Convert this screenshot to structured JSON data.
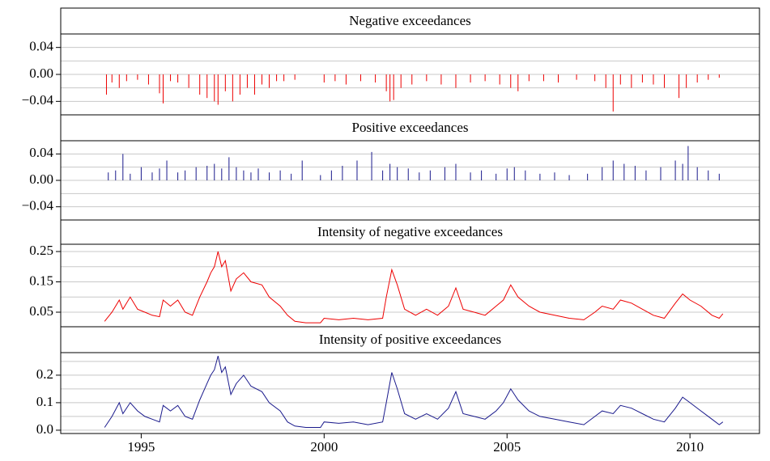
{
  "chart_data": [
    {
      "type": "spike",
      "title": "Negative exceedances",
      "color": "#ee0000",
      "x": [
        1994.05,
        1994.2,
        1994.4,
        1994.6,
        1994.9,
        1995.2,
        1995.5,
        1995.6,
        1995.8,
        1996.0,
        1996.3,
        1996.6,
        1996.8,
        1997.0,
        1997.1,
        1997.3,
        1997.5,
        1997.7,
        1997.9,
        1998.1,
        1998.3,
        1998.5,
        1998.7,
        1998.9,
        1999.2,
        2000.0,
        2000.3,
        2000.6,
        2001.0,
        2001.4,
        2001.7,
        2001.8,
        2001.9,
        2002.1,
        2002.4,
        2002.8,
        2003.2,
        2003.6,
        2004.0,
        2004.4,
        2004.8,
        2005.1,
        2005.3,
        2005.6,
        2006.0,
        2006.4,
        2006.9,
        2007.4,
        2007.7,
        2007.9,
        2008.1,
        2008.4,
        2008.7,
        2009.0,
        2009.3,
        2009.7,
        2009.9,
        2010.2,
        2010.5,
        2010.8
      ],
      "values": [
        -0.03,
        -0.012,
        -0.02,
        -0.01,
        -0.008,
        -0.015,
        -0.028,
        -0.043,
        -0.01,
        -0.012,
        -0.02,
        -0.03,
        -0.035,
        -0.04,
        -0.045,
        -0.025,
        -0.04,
        -0.03,
        -0.02,
        -0.03,
        -0.015,
        -0.02,
        -0.01,
        -0.01,
        -0.008,
        -0.012,
        -0.01,
        -0.015,
        -0.01,
        -0.012,
        -0.025,
        -0.04,
        -0.038,
        -0.02,
        -0.015,
        -0.01,
        -0.015,
        -0.02,
        -0.012,
        -0.01,
        -0.015,
        -0.02,
        -0.025,
        -0.01,
        -0.01,
        -0.012,
        -0.008,
        -0.01,
        -0.02,
        -0.055,
        -0.015,
        -0.02,
        -0.012,
        -0.015,
        -0.02,
        -0.035,
        -0.02,
        -0.012,
        -0.008,
        -0.005
      ],
      "xlim": [
        1992.8,
        2011.9
      ],
      "ylim": [
        -0.06,
        0.06
      ],
      "yticks": [
        0.04,
        {
          "value": 0,
          "label": "0.00"
        },
        {
          "value": -0.04,
          "label": "−0.04"
        }
      ],
      "minor_grid": [
        -0.06,
        -0.02,
        0.02,
        0.06
      ]
    },
    {
      "type": "spike",
      "title": "Positive exceedances",
      "color": "#1a1a8c",
      "x": [
        1994.1,
        1994.3,
        1994.5,
        1994.7,
        1995.0,
        1995.3,
        1995.5,
        1995.7,
        1996.0,
        1996.2,
        1996.5,
        1996.8,
        1997.0,
        1997.2,
        1997.4,
        1997.6,
        1997.8,
        1998.0,
        1998.2,
        1998.5,
        1998.8,
        1999.1,
        1999.4,
        1999.9,
        2000.2,
        2000.5,
        2000.9,
        2001.3,
        2001.6,
        2001.8,
        2002.0,
        2002.3,
        2002.6,
        2002.9,
        2003.3,
        2003.6,
        2004.0,
        2004.3,
        2004.7,
        2005.0,
        2005.2,
        2005.5,
        2005.9,
        2006.3,
        2006.7,
        2007.2,
        2007.6,
        2007.9,
        2008.2,
        2008.5,
        2008.8,
        2009.2,
        2009.6,
        2009.8,
        2009.95,
        2010.2,
        2010.5,
        2010.8
      ],
      "values": [
        0.012,
        0.015,
        0.04,
        0.01,
        0.02,
        0.012,
        0.018,
        0.03,
        0.012,
        0.015,
        0.02,
        0.022,
        0.025,
        0.018,
        0.035,
        0.02,
        0.015,
        0.012,
        0.018,
        0.012,
        0.015,
        0.01,
        0.03,
        0.008,
        0.015,
        0.022,
        0.03,
        0.043,
        0.015,
        0.025,
        0.02,
        0.018,
        0.012,
        0.015,
        0.02,
        0.025,
        0.012,
        0.015,
        0.01,
        0.018,
        0.02,
        0.015,
        0.01,
        0.012,
        0.008,
        0.01,
        0.02,
        0.03,
        0.025,
        0.022,
        0.015,
        0.02,
        0.03,
        0.025,
        0.052,
        0.02,
        0.015,
        0.01
      ],
      "xlim": [
        1992.8,
        2011.9
      ],
      "ylim": [
        -0.06,
        0.06
      ],
      "yticks": [
        0.04,
        {
          "value": 0,
          "label": "0.00"
        },
        {
          "value": -0.04,
          "label": "−0.04"
        }
      ],
      "minor_grid": [
        -0.06,
        -0.02,
        0.02,
        0.06
      ]
    },
    {
      "type": "line",
      "title": "Intensity of negative exceedances",
      "color": "#ee0000",
      "x": [
        1994.0,
        1994.2,
        1994.4,
        1994.5,
        1994.7,
        1994.9,
        1995.1,
        1995.3,
        1995.5,
        1995.6,
        1995.8,
        1996.0,
        1996.2,
        1996.4,
        1996.6,
        1996.8,
        1996.9,
        1997.0,
        1997.1,
        1997.2,
        1997.3,
        1997.45,
        1997.6,
        1997.8,
        1998.0,
        1998.3,
        1998.5,
        1998.8,
        1999.0,
        1999.2,
        1999.5,
        1999.9,
        2000.0,
        2000.4,
        2000.8,
        2001.2,
        2001.6,
        2001.7,
        2001.85,
        2002.0,
        2002.2,
        2002.5,
        2002.8,
        2003.1,
        2003.4,
        2003.6,
        2003.8,
        2004.1,
        2004.4,
        2004.7,
        2004.9,
        2005.1,
        2005.3,
        2005.6,
        2005.9,
        2006.3,
        2006.7,
        2007.1,
        2007.4,
        2007.6,
        2007.9,
        2008.1,
        2008.4,
        2008.7,
        2009.0,
        2009.3,
        2009.6,
        2009.8,
        2010.0,
        2010.3,
        2010.6,
        2010.8,
        2010.9
      ],
      "values": [
        0.02,
        0.05,
        0.09,
        0.06,
        0.1,
        0.06,
        0.05,
        0.04,
        0.035,
        0.09,
        0.07,
        0.09,
        0.05,
        0.04,
        0.1,
        0.15,
        0.18,
        0.2,
        0.25,
        0.2,
        0.22,
        0.12,
        0.16,
        0.18,
        0.15,
        0.14,
        0.1,
        0.07,
        0.04,
        0.02,
        0.015,
        0.015,
        0.03,
        0.025,
        0.03,
        0.025,
        0.03,
        0.1,
        0.19,
        0.14,
        0.06,
        0.04,
        0.06,
        0.04,
        0.07,
        0.13,
        0.06,
        0.05,
        0.04,
        0.07,
        0.09,
        0.14,
        0.1,
        0.07,
        0.05,
        0.04,
        0.03,
        0.025,
        0.05,
        0.07,
        0.06,
        0.09,
        0.08,
        0.06,
        0.04,
        0.03,
        0.08,
        0.11,
        0.09,
        0.07,
        0.04,
        0.03,
        0.045
      ],
      "xlim": [
        1992.8,
        2011.9
      ],
      "ylim": [
        0.002,
        0.274
      ],
      "yticks": [
        0.25,
        0.15,
        0.05
      ],
      "minor_grid": [
        0.1,
        0.2
      ]
    },
    {
      "type": "line",
      "title": "Intensity of positive exceedances",
      "color": "#1a1a8c",
      "x": [
        1994.0,
        1994.2,
        1994.4,
        1994.5,
        1994.7,
        1994.9,
        1995.1,
        1995.3,
        1995.5,
        1995.6,
        1995.8,
        1996.0,
        1996.2,
        1996.4,
        1996.6,
        1996.8,
        1996.9,
        1997.0,
        1997.1,
        1997.2,
        1997.3,
        1997.45,
        1997.6,
        1997.8,
        1998.0,
        1998.3,
        1998.5,
        1998.8,
        1999.0,
        1999.2,
        1999.5,
        1999.9,
        2000.0,
        2000.4,
        2000.8,
        2001.2,
        2001.6,
        2001.7,
        2001.85,
        2002.0,
        2002.2,
        2002.5,
        2002.8,
        2003.1,
        2003.4,
        2003.6,
        2003.8,
        2004.1,
        2004.4,
        2004.7,
        2004.9,
        2005.1,
        2005.3,
        2005.6,
        2005.9,
        2006.3,
        2006.7,
        2007.1,
        2007.4,
        2007.6,
        2007.9,
        2008.1,
        2008.4,
        2008.7,
        2009.0,
        2009.3,
        2009.6,
        2009.8,
        2010.0,
        2010.3,
        2010.6,
        2010.8,
        2010.9
      ],
      "values": [
        0.01,
        0.05,
        0.1,
        0.06,
        0.1,
        0.07,
        0.05,
        0.04,
        0.03,
        0.09,
        0.07,
        0.09,
        0.05,
        0.04,
        0.11,
        0.17,
        0.2,
        0.22,
        0.27,
        0.21,
        0.23,
        0.13,
        0.17,
        0.2,
        0.16,
        0.14,
        0.1,
        0.07,
        0.03,
        0.015,
        0.01,
        0.01,
        0.03,
        0.025,
        0.03,
        0.02,
        0.03,
        0.1,
        0.21,
        0.15,
        0.06,
        0.04,
        0.06,
        0.04,
        0.08,
        0.14,
        0.06,
        0.05,
        0.04,
        0.07,
        0.1,
        0.15,
        0.11,
        0.07,
        0.05,
        0.04,
        0.03,
        0.02,
        0.05,
        0.07,
        0.06,
        0.09,
        0.08,
        0.06,
        0.04,
        0.03,
        0.08,
        0.12,
        0.1,
        0.07,
        0.04,
        0.02,
        0.03
      ],
      "xlim": [
        1992.8,
        2011.9
      ],
      "ylim": [
        -0.012,
        0.282
      ],
      "yticks": [
        0.2,
        0.1,
        {
          "value": 0,
          "label": "0.0"
        }
      ],
      "minor_grid": [
        0.05,
        0.15,
        0.25
      ],
      "xticks": [
        1995,
        2000,
        2005,
        2010
      ]
    }
  ]
}
